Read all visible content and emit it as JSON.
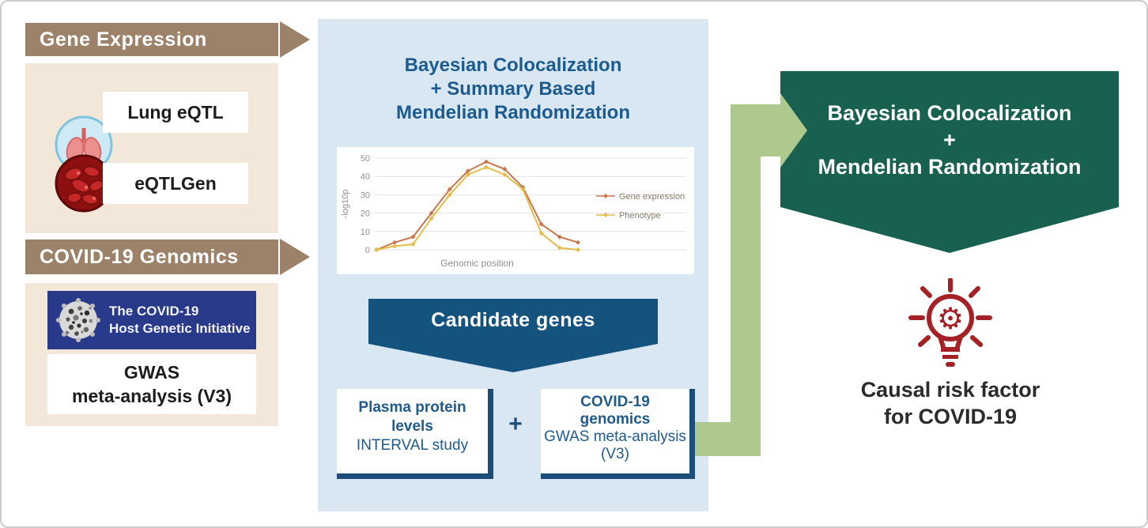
{
  "left_panel": {
    "banner_gene_expression": "Gene Expression",
    "gene_expression_items": [
      {
        "icon": "lung-icon",
        "label": "Lung eQTL"
      },
      {
        "icon": "blood-cells-icon",
        "label": "eQTLGen"
      }
    ],
    "banner_covid_genomics": "COVID-19 Genomics",
    "hgi_logo": {
      "icon": "virus-icon",
      "line1": "The COVID-19",
      "line2": "Host Genetic Initiative"
    },
    "gwas_box": {
      "line1": "GWAS",
      "line2": "meta-analysis (V3)"
    }
  },
  "center_panel": {
    "title_lines": [
      "Bayesian Colocalization",
      "+ Summary Based",
      "Mendelian Randomization"
    ],
    "candidate_banner": "Candidate genes",
    "plasma_box": {
      "bold_lines": [
        "Plasma protein",
        "levels"
      ],
      "regular_lines": [
        "INTERVAL study"
      ]
    },
    "plus": "+",
    "covid_box": {
      "bold_lines": [
        "COVID-19",
        "genomics"
      ],
      "regular_lines": [
        "GWAS meta-analysis",
        "(V3)"
      ]
    }
  },
  "chart_data": {
    "type": "line",
    "x": [
      1,
      2,
      3,
      4,
      5,
      6,
      7,
      8,
      9,
      10,
      11,
      12
    ],
    "series": [
      {
        "name": "Gene expression",
        "color": "#c8784f",
        "values": [
          0,
          4,
          7,
          20,
          33,
          43,
          48,
          44,
          34,
          14,
          7,
          4
        ]
      },
      {
        "name": "Phenotype",
        "color": "#e3bc4a",
        "values": [
          0,
          2,
          3,
          17,
          30,
          41,
          45,
          41,
          33,
          9,
          1,
          0
        ]
      }
    ],
    "title": "",
    "xlabel": "Genomic position",
    "ylabel": "-log10p",
    "ylim": [
      0,
      50
    ],
    "yticks": [
      0,
      10,
      20,
      30,
      40,
      50
    ],
    "grid": true,
    "legend_position": "right"
  },
  "right_panel": {
    "pentagon_lines": [
      "Bayesian Colocalization",
      "+",
      "Mendelian Randomization"
    ],
    "bulb_icon": "lightbulb-gear-icon",
    "result_line1": "Causal risk factor",
    "result_line2": "for COVID-19"
  },
  "colors": {
    "banner_brown": "#9b8268",
    "beige_panel": "#f3e7d9",
    "center_panel_blue": "#d9e7f3",
    "navy_text": "#1b5b8f",
    "candidate_navy": "#15537f",
    "box_border_navy": "#1d4e7a",
    "hgi_navy": "#2a3a8a",
    "pentagon_green": "#186050",
    "connector_light_green": "#adc98d",
    "bulb_dark_red": "#a42125"
  }
}
